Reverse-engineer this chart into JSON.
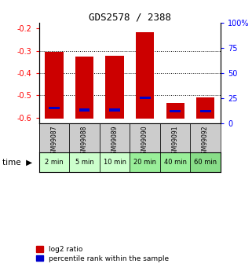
{
  "title": "GDS2578 / 2388",
  "samples": [
    "GSM99087",
    "GSM99088",
    "GSM99089",
    "GSM99090",
    "GSM99091",
    "GSM99092"
  ],
  "time_labels": [
    "2 min",
    "5 min",
    "10 min",
    "20 min",
    "40 min",
    "60 min"
  ],
  "log2_ratio": [
    -0.305,
    -0.325,
    -0.322,
    -0.215,
    -0.535,
    -0.51
  ],
  "bar_bottom": -0.605,
  "percentile_rank": [
    15,
    13,
    13,
    25,
    12,
    12
  ],
  "ylim_left": [
    -0.625,
    -0.175
  ],
  "ylim_right": [
    0,
    100
  ],
  "yticks_left": [
    -0.6,
    -0.5,
    -0.4,
    -0.3,
    -0.2
  ],
  "yticks_right": [
    0,
    25,
    50,
    75,
    100
  ],
  "bar_color": "#cc0000",
  "blue_color": "#0000cc",
  "background_color": "#ffffff",
  "time_bg_colors": [
    "#ccffcc",
    "#ccffcc",
    "#ccffcc",
    "#99ee99",
    "#99ee99",
    "#88dd88"
  ],
  "gsm_bg": "#cccccc",
  "legend_red_label": "log2 ratio",
  "legend_blue_label": "percentile rank within the sample"
}
